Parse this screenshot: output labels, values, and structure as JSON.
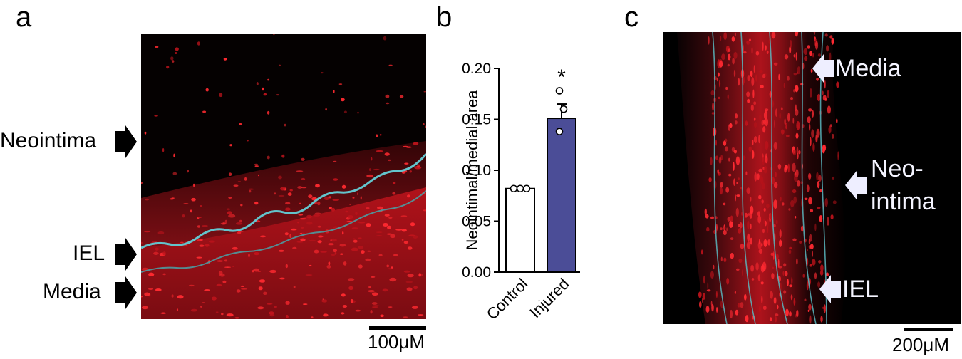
{
  "panels": {
    "a": {
      "letter": "a",
      "labels": {
        "neointima": "Neointima",
        "iel": "IEL",
        "media": "Media"
      },
      "scale": "100μM"
    },
    "b": {
      "letter": "b",
      "significance": "*"
    },
    "c": {
      "letter": "c",
      "labels": {
        "media": "Media",
        "neo_line1": "Neo-",
        "neo_line2": "intima",
        "iel": "IEL"
      },
      "scale": "200μM"
    }
  },
  "colors": {
    "control_bar": "#ffffff",
    "injured_bar": "#4b4d97",
    "tissue_red": "#e8202a",
    "elastin_cyan": "#5ab8c0",
    "arrow_dark": "#000000",
    "arrow_light": "#eeeeff"
  },
  "chart_data": {
    "type": "bar",
    "categories": [
      "Control",
      "Injured"
    ],
    "values": [
      0.082,
      0.151
    ],
    "errors": [
      0.001,
      0.014
    ],
    "points": [
      [
        0.082,
        0.082,
        0.082
      ],
      [
        0.178,
        0.16,
        0.138
      ]
    ],
    "ylabel": "Neointimal/medial area",
    "ylim": [
      0,
      0.2
    ],
    "yticks": [
      "0.00",
      "0.05",
      "0.10",
      "0.15",
      "0.20"
    ],
    "grid": false
  }
}
